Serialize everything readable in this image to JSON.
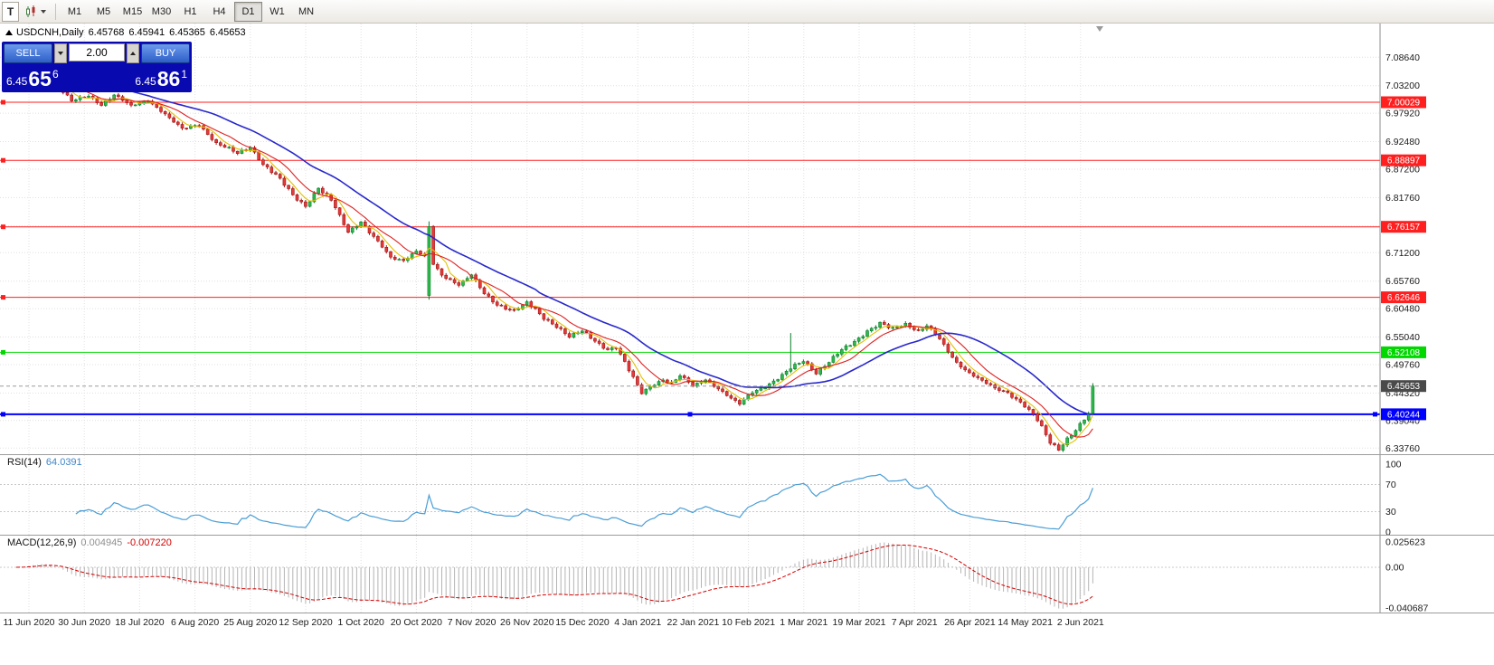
{
  "toolbar": {
    "left_tool": "T",
    "timeframes": [
      "M1",
      "M5",
      "M15",
      "M30",
      "H1",
      "H4",
      "D1",
      "W1",
      "MN"
    ],
    "active_timeframe": "D1"
  },
  "chart_header": {
    "symbol": "USDCNH,Daily",
    "open": "6.45768",
    "high": "6.45941",
    "low": "6.45365",
    "close": "6.45653"
  },
  "trade_panel": {
    "sell_label": "SELL",
    "buy_label": "BUY",
    "volume": "2.00",
    "sell_price": {
      "prefix": "6.45",
      "big": "65",
      "sup": "6"
    },
    "buy_price": {
      "prefix": "6.45",
      "big": "86",
      "sup": "1"
    }
  },
  "price_scale_ticks": [
    "7.08640",
    "7.03200",
    "6.97920",
    "6.92480",
    "6.87200",
    "6.81760",
    "6.76320",
    "6.71200",
    "6.65760",
    "6.60480",
    "6.55040",
    "6.49760",
    "6.44320",
    "6.39040",
    "6.33760"
  ],
  "hlines": [
    {
      "price": 7.00029,
      "label": "7.00029",
      "color": "#FF1F1F",
      "width": 1
    },
    {
      "price": 6.88897,
      "label": "6.88897",
      "color": "#FF1F1F",
      "width": 1
    },
    {
      "price": 6.76157,
      "label": "6.76157",
      "color": "#FF1F1F",
      "width": 1
    },
    {
      "price": 6.62646,
      "label": "6.62646",
      "color": "#FF1F1F",
      "width": 1
    },
    {
      "price": 6.52108,
      "label": "6.52108",
      "color": "#00D800",
      "width": 1
    },
    {
      "price": 6.40244,
      "label": "6.40244",
      "color": "#0000FF",
      "width": 2,
      "selected": true
    }
  ],
  "current_price": {
    "value": 6.45653,
    "label": "6.45653",
    "tag_color": "#4A4A4A"
  },
  "rsi_panel": {
    "title": "RSI(14)",
    "value": "64.0391",
    "scale": [
      "100",
      "70",
      "30",
      "0"
    ],
    "levels": [
      70,
      30
    ],
    "line_color": "#4A9ED6"
  },
  "macd_panel": {
    "title": "MACD(12,26,9)",
    "value": "0.004945",
    "signal_value": "-0.007220",
    "scale": [
      "0.025623",
      "0.00",
      "-0.040687"
    ],
    "histogram_color": "#B4B4B4",
    "signal_color": "#D40000"
  },
  "date_axis": [
    "11 Jun 2020",
    "30 Jun 2020",
    "18 Jul 2020",
    "6 Aug 2020",
    "25 Aug 2020",
    "12 Sep 2020",
    "1 Oct 2020",
    "20 Oct 2020",
    "7 Nov 2020",
    "26 Nov 2020",
    "15 Dec 2020",
    "4 Jan 2021",
    "22 Jan 2021",
    "10 Feb 2021",
    "1 Mar 2021",
    "19 Mar 2021",
    "7 Apr 2021",
    "26 Apr 2021",
    "14 May 2021",
    "2 Jun 2021"
  ],
  "chart_data": {
    "type": "candlestick",
    "symbol": "USDCNH",
    "period": "Daily",
    "num_candles": 254,
    "last_close": 6.45653,
    "axis": {
      "price_top": 7.151,
      "price_bottom": 6.326
    },
    "price_path_anchors": [
      [
        0,
        7.045
      ],
      [
        6,
        7.06
      ],
      [
        10,
        7.032
      ],
      [
        13,
        7.002
      ],
      [
        17,
        7.012
      ],
      [
        20,
        6.996
      ],
      [
        23,
        7.015
      ],
      [
        27,
        6.992
      ],
      [
        31,
        7.004
      ],
      [
        34,
        6.985
      ],
      [
        39,
        6.948
      ],
      [
        43,
        6.958
      ],
      [
        47,
        6.922
      ],
      [
        52,
        6.902
      ],
      [
        55,
        6.915
      ],
      [
        58,
        6.882
      ],
      [
        62,
        6.852
      ],
      [
        65,
        6.822
      ],
      [
        68,
        6.802
      ],
      [
        71,
        6.836
      ],
      [
        74,
        6.812
      ],
      [
        78,
        6.752
      ],
      [
        81,
        6.772
      ],
      [
        85,
        6.732
      ],
      [
        88,
        6.702
      ],
      [
        91,
        6.698
      ],
      [
        94,
        6.716
      ],
      [
        97,
        6.7
      ],
      [
        100,
        6.668
      ],
      [
        104,
        6.652
      ],
      [
        107,
        6.67
      ],
      [
        110,
        6.632
      ],
      [
        113,
        6.612
      ],
      [
        117,
        6.602
      ],
      [
        120,
        6.616
      ],
      [
        124,
        6.586
      ],
      [
        127,
        6.572
      ],
      [
        130,
        6.552
      ],
      [
        133,
        6.562
      ],
      [
        136,
        6.542
      ],
      [
        139,
        6.527
      ],
      [
        141,
        6.532
      ],
      [
        143,
        6.502
      ],
      [
        145,
        6.472
      ],
      [
        147,
        6.442
      ],
      [
        149,
        6.456
      ],
      [
        152,
        6.47
      ],
      [
        154,
        6.462
      ],
      [
        156,
        6.476
      ],
      [
        159,
        6.456
      ],
      [
        162,
        6.47
      ],
      [
        165,
        6.452
      ],
      [
        168,
        6.432
      ],
      [
        170,
        6.422
      ],
      [
        173,
        6.446
      ],
      [
        176,
        6.456
      ],
      [
        179,
        6.47
      ],
      [
        182,
        6.49
      ],
      [
        185,
        6.506
      ],
      [
        188,
        6.482
      ],
      [
        191,
        6.502
      ],
      [
        194,
        6.526
      ],
      [
        197,
        6.542
      ],
      [
        200,
        6.562
      ],
      [
        203,
        6.576
      ],
      [
        206,
        6.566
      ],
      [
        209,
        6.576
      ],
      [
        212,
        6.562
      ],
      [
        214,
        6.572
      ],
      [
        217,
        6.546
      ],
      [
        219,
        6.522
      ],
      [
        221,
        6.502
      ],
      [
        224,
        6.482
      ],
      [
        227,
        6.466
      ],
      [
        230,
        6.452
      ],
      [
        233,
        6.444
      ],
      [
        236,
        6.426
      ],
      [
        239,
        6.402
      ],
      [
        241,
        6.378
      ],
      [
        243,
        6.348
      ],
      [
        245,
        6.336
      ],
      [
        247,
        6.356
      ],
      [
        249,
        6.372
      ],
      [
        251,
        6.392
      ],
      [
        252,
        6.404
      ],
      [
        253,
        6.45653
      ]
    ],
    "spike_candles": [
      {
        "index": 97,
        "open": 6.63,
        "close": 6.762,
        "high": 6.772,
        "low": 6.622
      },
      {
        "index": 182,
        "high": 6.558
      },
      {
        "index": 253,
        "high": 6.462
      }
    ],
    "moving_averages": [
      {
        "period": 5,
        "color": "#E3C000"
      },
      {
        "period": 10,
        "color": "#E02020"
      },
      {
        "period": 26,
        "color": "#2828CC"
      }
    ],
    "up_color": "#0B7F2B",
    "down_color": "#9E1515",
    "up_fill": "#2FB94D",
    "down_fill": "#E63A3A"
  }
}
